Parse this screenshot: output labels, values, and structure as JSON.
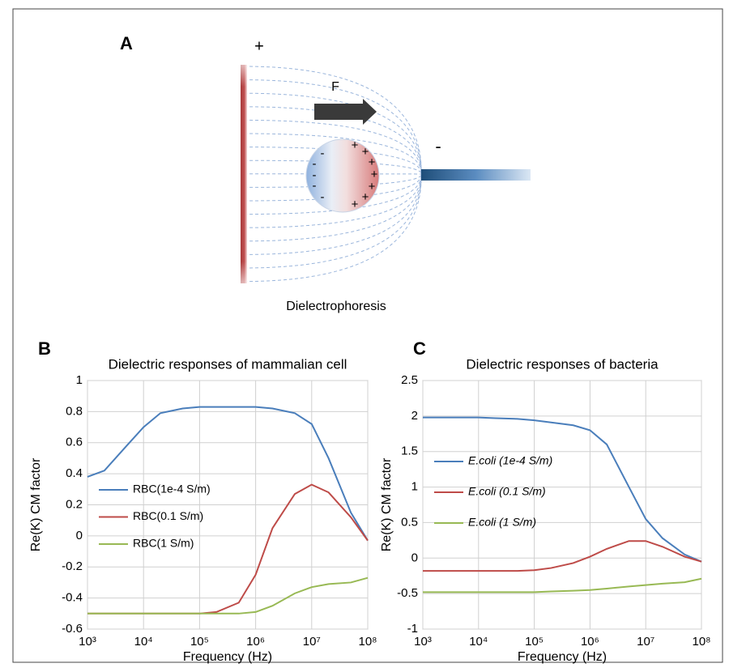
{
  "diagram": {
    "panel_label": "A",
    "plate_sign": "+",
    "force_label": "F",
    "electrode_sign": "-",
    "cell_negative_sign": "-",
    "cell_positive_sign": "+",
    "caption": "Dielectrophoresis"
  },
  "chart_data": [
    {
      "type": "line",
      "panel_label": "B",
      "title": "Dielectric responses of mammalian cell",
      "x_label": "Frequency (Hz)",
      "y_label": "Re(K) CM factor",
      "x_scale": "log",
      "legend": "left",
      "grid": true,
      "x": [
        1000,
        2000,
        5000,
        10000,
        20000,
        50000,
        100000,
        200000,
        500000,
        1000000,
        2000000,
        5000000,
        10000000,
        20000000,
        50000000,
        100000000
      ],
      "series": [
        {
          "name": "RBC(1e-4 S/m)",
          "color": "#4a7ebb",
          "values": [
            0.38,
            0.42,
            0.58,
            0.7,
            0.79,
            0.82,
            0.83,
            0.83,
            0.83,
            0.83,
            0.82,
            0.79,
            0.72,
            0.5,
            0.15,
            -0.03
          ]
        },
        {
          "name": "RBC(0.1 S/m)",
          "color": "#be4b48",
          "values": [
            -0.5,
            -0.5,
            -0.5,
            -0.5,
            -0.5,
            -0.5,
            -0.5,
            -0.49,
            -0.43,
            -0.25,
            0.05,
            0.27,
            0.33,
            0.28,
            0.12,
            -0.03
          ]
        },
        {
          "name": "RBC(1 S/m)",
          "color": "#98b954",
          "values": [
            -0.5,
            -0.5,
            -0.5,
            -0.5,
            -0.5,
            -0.5,
            -0.5,
            -0.5,
            -0.5,
            -0.49,
            -0.45,
            -0.37,
            -0.33,
            -0.31,
            -0.3,
            -0.27
          ]
        }
      ],
      "xlim": [
        1000,
        100000000
      ],
      "xticks": [
        {
          "value": 1000,
          "label": "10³"
        },
        {
          "value": 10000,
          "label": "10⁴"
        },
        {
          "value": 100000,
          "label": "10⁵"
        },
        {
          "value": 1000000,
          "label": "10⁶"
        },
        {
          "value": 10000000,
          "label": "10⁷"
        },
        {
          "value": 100000000,
          "label": "10⁸"
        }
      ],
      "ylim": [
        -0.6,
        1
      ],
      "yticks": [
        -0.6,
        -0.4,
        -0.2,
        0,
        0.2,
        0.4,
        0.6,
        0.8,
        1
      ]
    },
    {
      "type": "line",
      "panel_label": "C",
      "title": "Dielectric responses of bacteria",
      "x_label": "Frequency (Hz)",
      "y_label": "Re(K) CM factor",
      "x_scale": "log",
      "legend": "left",
      "legend_italic": true,
      "grid": true,
      "x": [
        1000,
        2000,
        5000,
        10000,
        20000,
        50000,
        100000,
        200000,
        500000,
        1000000,
        2000000,
        5000000,
        10000000,
        20000000,
        50000000,
        100000000
      ],
      "series": [
        {
          "name": "E.coli (1e-4 S/m)",
          "color": "#4a7ebb",
          "values": [
            1.98,
            1.98,
            1.98,
            1.98,
            1.97,
            1.96,
            1.94,
            1.91,
            1.87,
            1.8,
            1.6,
            1.0,
            0.55,
            0.28,
            0.05,
            -0.05
          ]
        },
        {
          "name": "E.coli (0.1 S/m)",
          "color": "#be4b48",
          "values": [
            -0.18,
            -0.18,
            -0.18,
            -0.18,
            -0.18,
            -0.18,
            -0.17,
            -0.14,
            -0.07,
            0.02,
            0.13,
            0.24,
            0.24,
            0.16,
            0.02,
            -0.05
          ]
        },
        {
          "name": "E.coli (1 S/m)",
          "color": "#98b954",
          "values": [
            -0.48,
            -0.48,
            -0.48,
            -0.48,
            -0.48,
            -0.48,
            -0.48,
            -0.47,
            -0.46,
            -0.45,
            -0.43,
            -0.4,
            -0.38,
            -0.36,
            -0.34,
            -0.29
          ]
        }
      ],
      "xlim": [
        1000,
        100000000
      ],
      "xticks": [
        {
          "value": 1000,
          "label": "10³"
        },
        {
          "value": 10000,
          "label": "10⁴"
        },
        {
          "value": 100000,
          "label": "10⁵"
        },
        {
          "value": 1000000,
          "label": "10⁶"
        },
        {
          "value": 10000000,
          "label": "10⁷"
        },
        {
          "value": 100000000,
          "label": "10⁸"
        }
      ],
      "ylim": [
        -1,
        2.5
      ],
      "yticks": [
        -1,
        -0.5,
        0,
        0.5,
        1,
        1.5,
        2,
        2.5
      ]
    }
  ]
}
